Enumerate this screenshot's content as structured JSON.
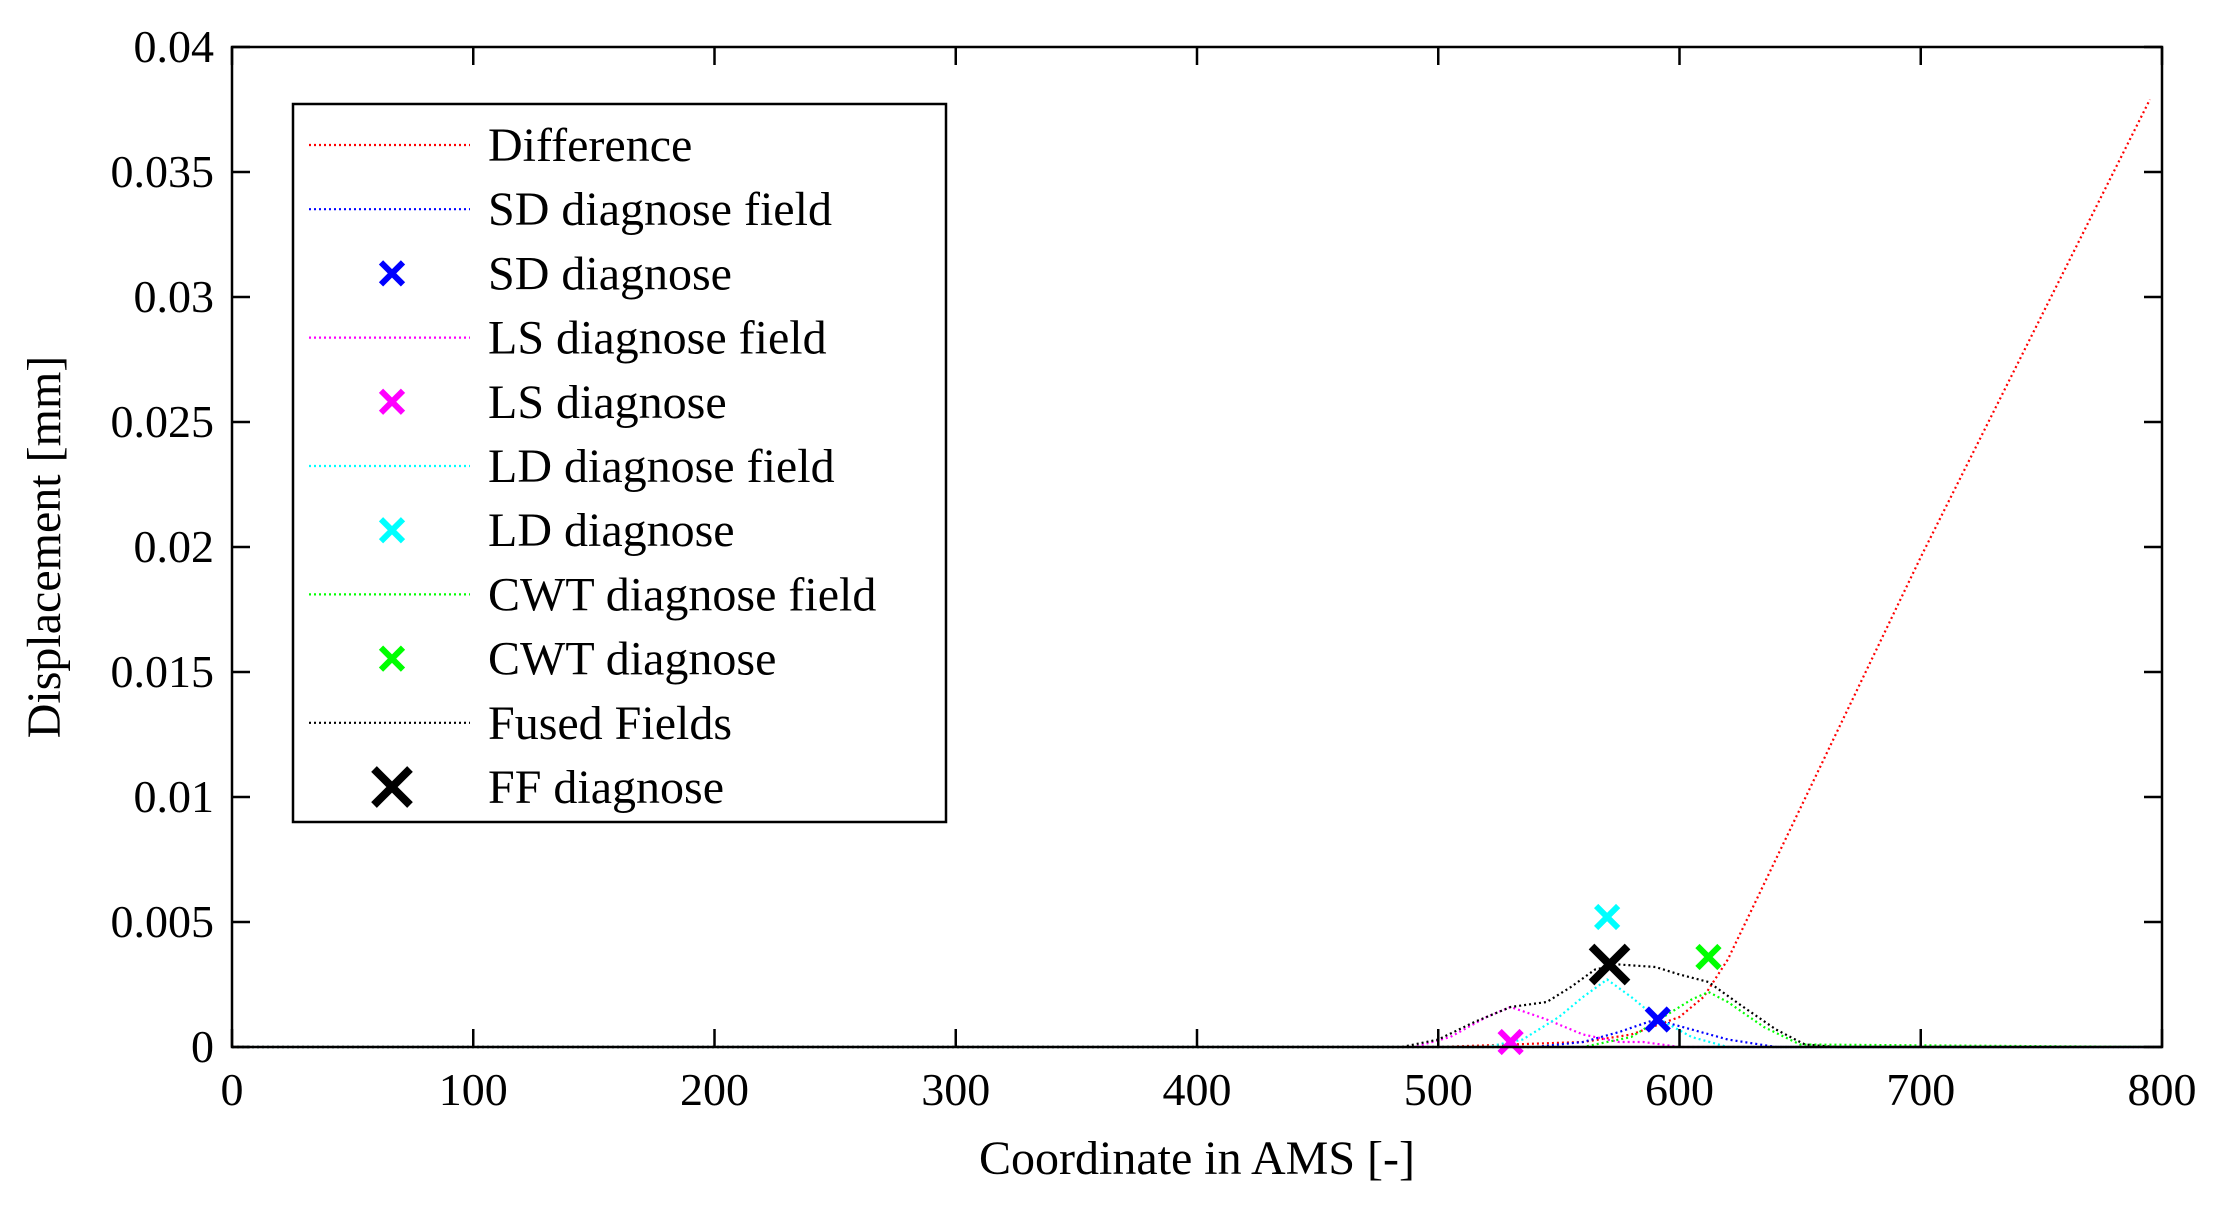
{
  "chart_data": {
    "type": "line",
    "title": "",
    "xlabel": "Coordinate in AMS  [-]",
    "ylabel": "Displacement  [mm]",
    "xlim": [
      0,
      800
    ],
    "ylim": [
      0,
      0.04
    ],
    "x_ticks": [
      0,
      100,
      200,
      300,
      400,
      500,
      600,
      700,
      800
    ],
    "x_tick_labels": [
      "0",
      "100",
      "200",
      "300",
      "400",
      "500",
      "600",
      "700",
      "800"
    ],
    "y_ticks": [
      0,
      0.005,
      0.01,
      0.015,
      0.02,
      0.025,
      0.03,
      0.035,
      0.04
    ],
    "y_tick_labels": [
      "0",
      "0.005",
      "0.01",
      "0.015",
      "0.02",
      "0.025",
      "0.03",
      "0.035",
      "0.04"
    ],
    "grid": false,
    "legend_position": "top-left",
    "series": [
      {
        "id": "difference",
        "name": "Difference",
        "kind": "line",
        "color": "#ff0000",
        "x": [
          0,
          500,
          560,
          580,
          600,
          610,
          620,
          700,
          795
        ],
        "y": [
          0,
          0,
          0.0002,
          0.0005,
          0.0012,
          0.002,
          0.0035,
          0.0196,
          0.0379
        ]
      },
      {
        "id": "sd_field",
        "name": "SD diagnose field",
        "kind": "line",
        "color": "#0000ff",
        "x": [
          0,
          540,
          560,
          575,
          590,
          605,
          620,
          640,
          800
        ],
        "y": [
          0,
          0,
          0.0002,
          0.0006,
          0.0011,
          0.0007,
          0.0003,
          0,
          0
        ]
      },
      {
        "id": "sd_diag",
        "name": "SD diagnose",
        "kind": "marker",
        "color": "#0000ff",
        "x": [
          591
        ],
        "y": [
          0.0011
        ]
      },
      {
        "id": "ls_field",
        "name": "LS diagnose field",
        "kind": "line",
        "color": "#ff00ff",
        "x": [
          0,
          490,
          505,
          520,
          530,
          545,
          560,
          575,
          585,
          600,
          800
        ],
        "y": [
          0,
          0,
          0.0004,
          0.0012,
          0.0016,
          0.0011,
          0.0005,
          0.0002,
          0.0002,
          0,
          0
        ]
      },
      {
        "id": "ls_diag",
        "name": "LS diagnose",
        "kind": "marker",
        "color": "#ff00ff",
        "x": [
          530
        ],
        "y": [
          0.0002
        ]
      },
      {
        "id": "ld_field",
        "name": "LD diagnose field",
        "kind": "line",
        "color": "#00ffff",
        "x": [
          0,
          520,
          535,
          550,
          560,
          570,
          580,
          590,
          605,
          620,
          800
        ],
        "y": [
          0,
          0,
          0.0003,
          0.0012,
          0.002,
          0.0027,
          0.002,
          0.0012,
          0.0004,
          0,
          0
        ]
      },
      {
        "id": "ld_diag",
        "name": "LD diagnose",
        "kind": "marker",
        "color": "#00ffff",
        "x": [
          570
        ],
        "y": [
          0.0052
        ]
      },
      {
        "id": "cwt_field",
        "name": "CWT diagnose field",
        "kind": "line",
        "color": "#00ff00",
        "x": [
          0,
          560,
          580,
          595,
          605,
          612,
          620,
          635,
          650,
          800
        ],
        "y": [
          0,
          0,
          0.0004,
          0.0013,
          0.0019,
          0.0022,
          0.0018,
          0.0008,
          0.0001,
          0
        ]
      },
      {
        "id": "cwt_diag",
        "name": "CWT diagnose",
        "kind": "marker",
        "color": "#00ff00",
        "x": [
          612
        ],
        "y": [
          0.0036
        ]
      },
      {
        "id": "fused",
        "name": "Fused Fields",
        "kind": "line",
        "color": "#000000",
        "x": [
          0,
          485,
          500,
          515,
          530,
          545,
          555,
          565,
          575,
          590,
          600,
          612,
          625,
          640,
          652,
          665,
          800
        ],
        "y": [
          0,
          0,
          0.0003,
          0.001,
          0.0016,
          0.0018,
          0.0024,
          0.0031,
          0.0033,
          0.0032,
          0.0029,
          0.0026,
          0.0017,
          0.0007,
          0.0001,
          0,
          0
        ]
      },
      {
        "id": "ff_diag",
        "name": "FF diagnose",
        "kind": "marker",
        "color": "#000000",
        "big": true,
        "x": [
          571
        ],
        "y": [
          0.0033
        ]
      }
    ]
  }
}
